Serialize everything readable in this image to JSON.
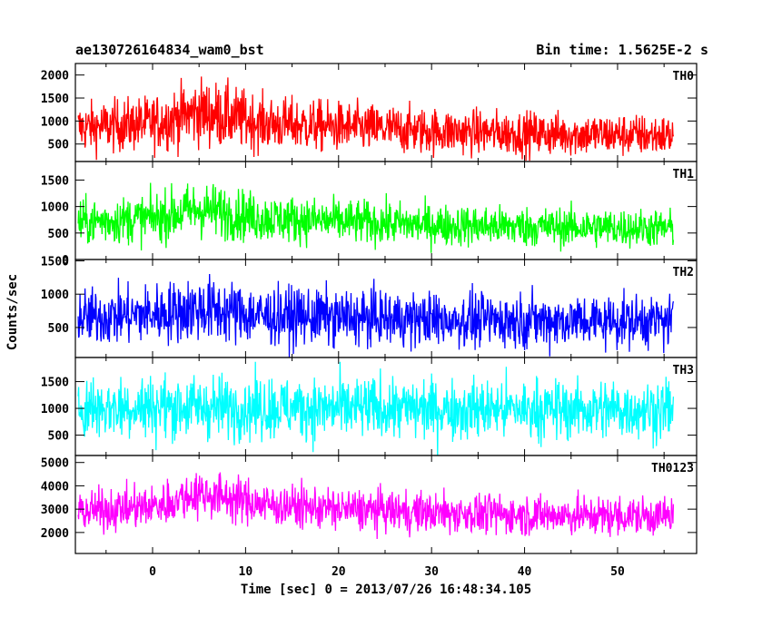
{
  "chart_data": {
    "type": "line",
    "title": "ae130726164834_wam0_bst",
    "subtitle": "Bin time: 1.5625E-2 s",
    "xlabel": "Time [sec] 0 = 2013/07/26 16:48:34.105",
    "ylabel": "Counts/sec",
    "xlim": [
      -8.3,
      58.5
    ],
    "x_ticks": [
      0,
      10,
      20,
      30,
      40,
      50
    ],
    "x_tick_labels": [
      "0",
      "10",
      "20",
      "30",
      "40",
      "50"
    ],
    "data_range": [
      -8.0,
      56.0
    ],
    "panels": [
      {
        "name": "TH0",
        "color": "#ff0000",
        "ylim": [
          120,
          2250
        ],
        "y_ticks": [
          500,
          1000,
          1500,
          2000
        ],
        "y_tick_labels": [
          "500",
          "1000",
          "1500",
          "2000"
        ],
        "profile": [
          [
            -8,
            850,
            380
          ],
          [
            0,
            950,
            430
          ],
          [
            5,
            1200,
            520
          ],
          [
            8,
            1100,
            500
          ],
          [
            12,
            950,
            420
          ],
          [
            20,
            870,
            390
          ],
          [
            30,
            780,
            360
          ],
          [
            40,
            730,
            340
          ],
          [
            50,
            700,
            330
          ],
          [
            56,
            680,
            320
          ]
        ]
      },
      {
        "name": "TH1",
        "color": "#00ff00",
        "ylim": [
          0,
          1850
        ],
        "y_ticks": [
          0,
          500,
          1000,
          1500
        ],
        "y_tick_labels": [
          "0",
          "500",
          "1000",
          "1500"
        ],
        "profile": [
          [
            -8,
            700,
            300
          ],
          [
            0,
            780,
            330
          ],
          [
            5,
            950,
            380
          ],
          [
            8,
            880,
            360
          ],
          [
            12,
            780,
            320
          ],
          [
            20,
            720,
            300
          ],
          [
            30,
            650,
            280
          ],
          [
            40,
            620,
            270
          ],
          [
            50,
            600,
            260
          ],
          [
            56,
            590,
            255
          ]
        ]
      },
      {
        "name": "TH2",
        "color": "#0000ff",
        "ylim": [
          50,
          1520
        ],
        "y_ticks": [
          500,
          1000,
          1500
        ],
        "y_tick_labels": [
          "500",
          "1000",
          "1500"
        ],
        "profile": [
          [
            -8,
            650,
            300
          ],
          [
            0,
            700,
            320
          ],
          [
            5,
            780,
            350
          ],
          [
            8,
            740,
            340
          ],
          [
            12,
            670,
            310
          ],
          [
            20,
            650,
            300
          ],
          [
            30,
            620,
            290
          ],
          [
            40,
            610,
            285
          ],
          [
            50,
            600,
            280
          ],
          [
            56,
            600,
            280
          ]
        ]
      },
      {
        "name": "TH3",
        "color": "#00ffff",
        "ylim": [
          120,
          1950
        ],
        "y_ticks": [
          500,
          1000,
          1500
        ],
        "y_tick_labels": [
          "500",
          "1000",
          "1500"
        ],
        "profile": [
          [
            -8,
            1020,
            420
          ],
          [
            0,
            1030,
            420
          ],
          [
            10,
            1020,
            420
          ],
          [
            20,
            1000,
            410
          ],
          [
            30,
            990,
            410
          ],
          [
            40,
            980,
            400
          ],
          [
            50,
            980,
            400
          ],
          [
            56,
            980,
            400
          ]
        ]
      },
      {
        "name": "TH0123",
        "color": "#ff00ff",
        "ylim": [
          1100,
          5300
        ],
        "y_ticks": [
          2000,
          3000,
          4000,
          5000
        ],
        "y_tick_labels": [
          "2000",
          "3000",
          "4000",
          "5000"
        ],
        "profile": [
          [
            -8,
            2900,
            620
          ],
          [
            0,
            3100,
            650
          ],
          [
            5,
            3700,
            720
          ],
          [
            8,
            3500,
            700
          ],
          [
            12,
            3200,
            660
          ],
          [
            20,
            3000,
            640
          ],
          [
            30,
            2850,
            620
          ],
          [
            40,
            2750,
            600
          ],
          [
            50,
            2700,
            600
          ],
          [
            56,
            2700,
            600
          ]
        ]
      }
    ]
  }
}
